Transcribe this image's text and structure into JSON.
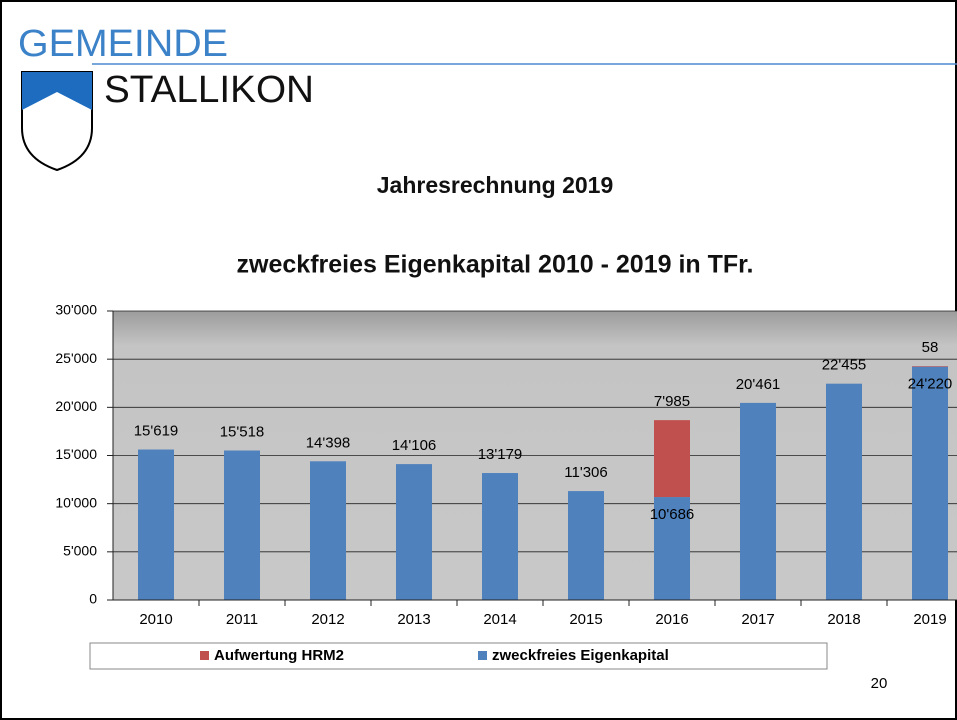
{
  "header": {
    "line1": "GEMEINDE",
    "line2": "STALLIKON"
  },
  "slide_title": "Jahresrechnung 2019",
  "page_number": "20",
  "chart_data": {
    "type": "stacked_bar",
    "title": "zweckfreies Eigenkapital 2010 - 2019 in TFr.",
    "categories": [
      "2010",
      "2011",
      "2012",
      "2013",
      "2014",
      "2015",
      "2016",
      "2017",
      "2018",
      "2019"
    ],
    "series": [
      {
        "name": "zweckfreies Eigenkapital",
        "color": "#4f81bd",
        "values": [
          15619,
          15518,
          14398,
          14106,
          13179,
          11306,
          10686,
          20461,
          22455,
          24220
        ],
        "value_labels": [
          "15'619",
          "15'518",
          "14'398",
          "14'106",
          "13'179",
          "11'306",
          "10'686",
          "20'461",
          "22'455",
          "24'220"
        ]
      },
      {
        "name": "Aufwertung HRM2",
        "color": "#c0504d",
        "values": [
          null,
          null,
          null,
          null,
          null,
          null,
          7985,
          null,
          null,
          58
        ],
        "value_labels": [
          null,
          null,
          null,
          null,
          null,
          null,
          "7'985",
          null,
          null,
          "58"
        ]
      }
    ],
    "ylim": [
      0,
      30000
    ],
    "yticks": [
      0,
      {
        "value": 5000,
        "label": "5'000"
      },
      {
        "value": 10000,
        "label": "10'000"
      },
      {
        "value": 15000,
        "label": "15'000"
      },
      {
        "value": 20000,
        "label": "20'000"
      },
      {
        "value": 25000,
        "label": "25'000"
      },
      {
        "value": 30000,
        "label": "30'000"
      }
    ],
    "grid": true,
    "legend": "bottom"
  }
}
